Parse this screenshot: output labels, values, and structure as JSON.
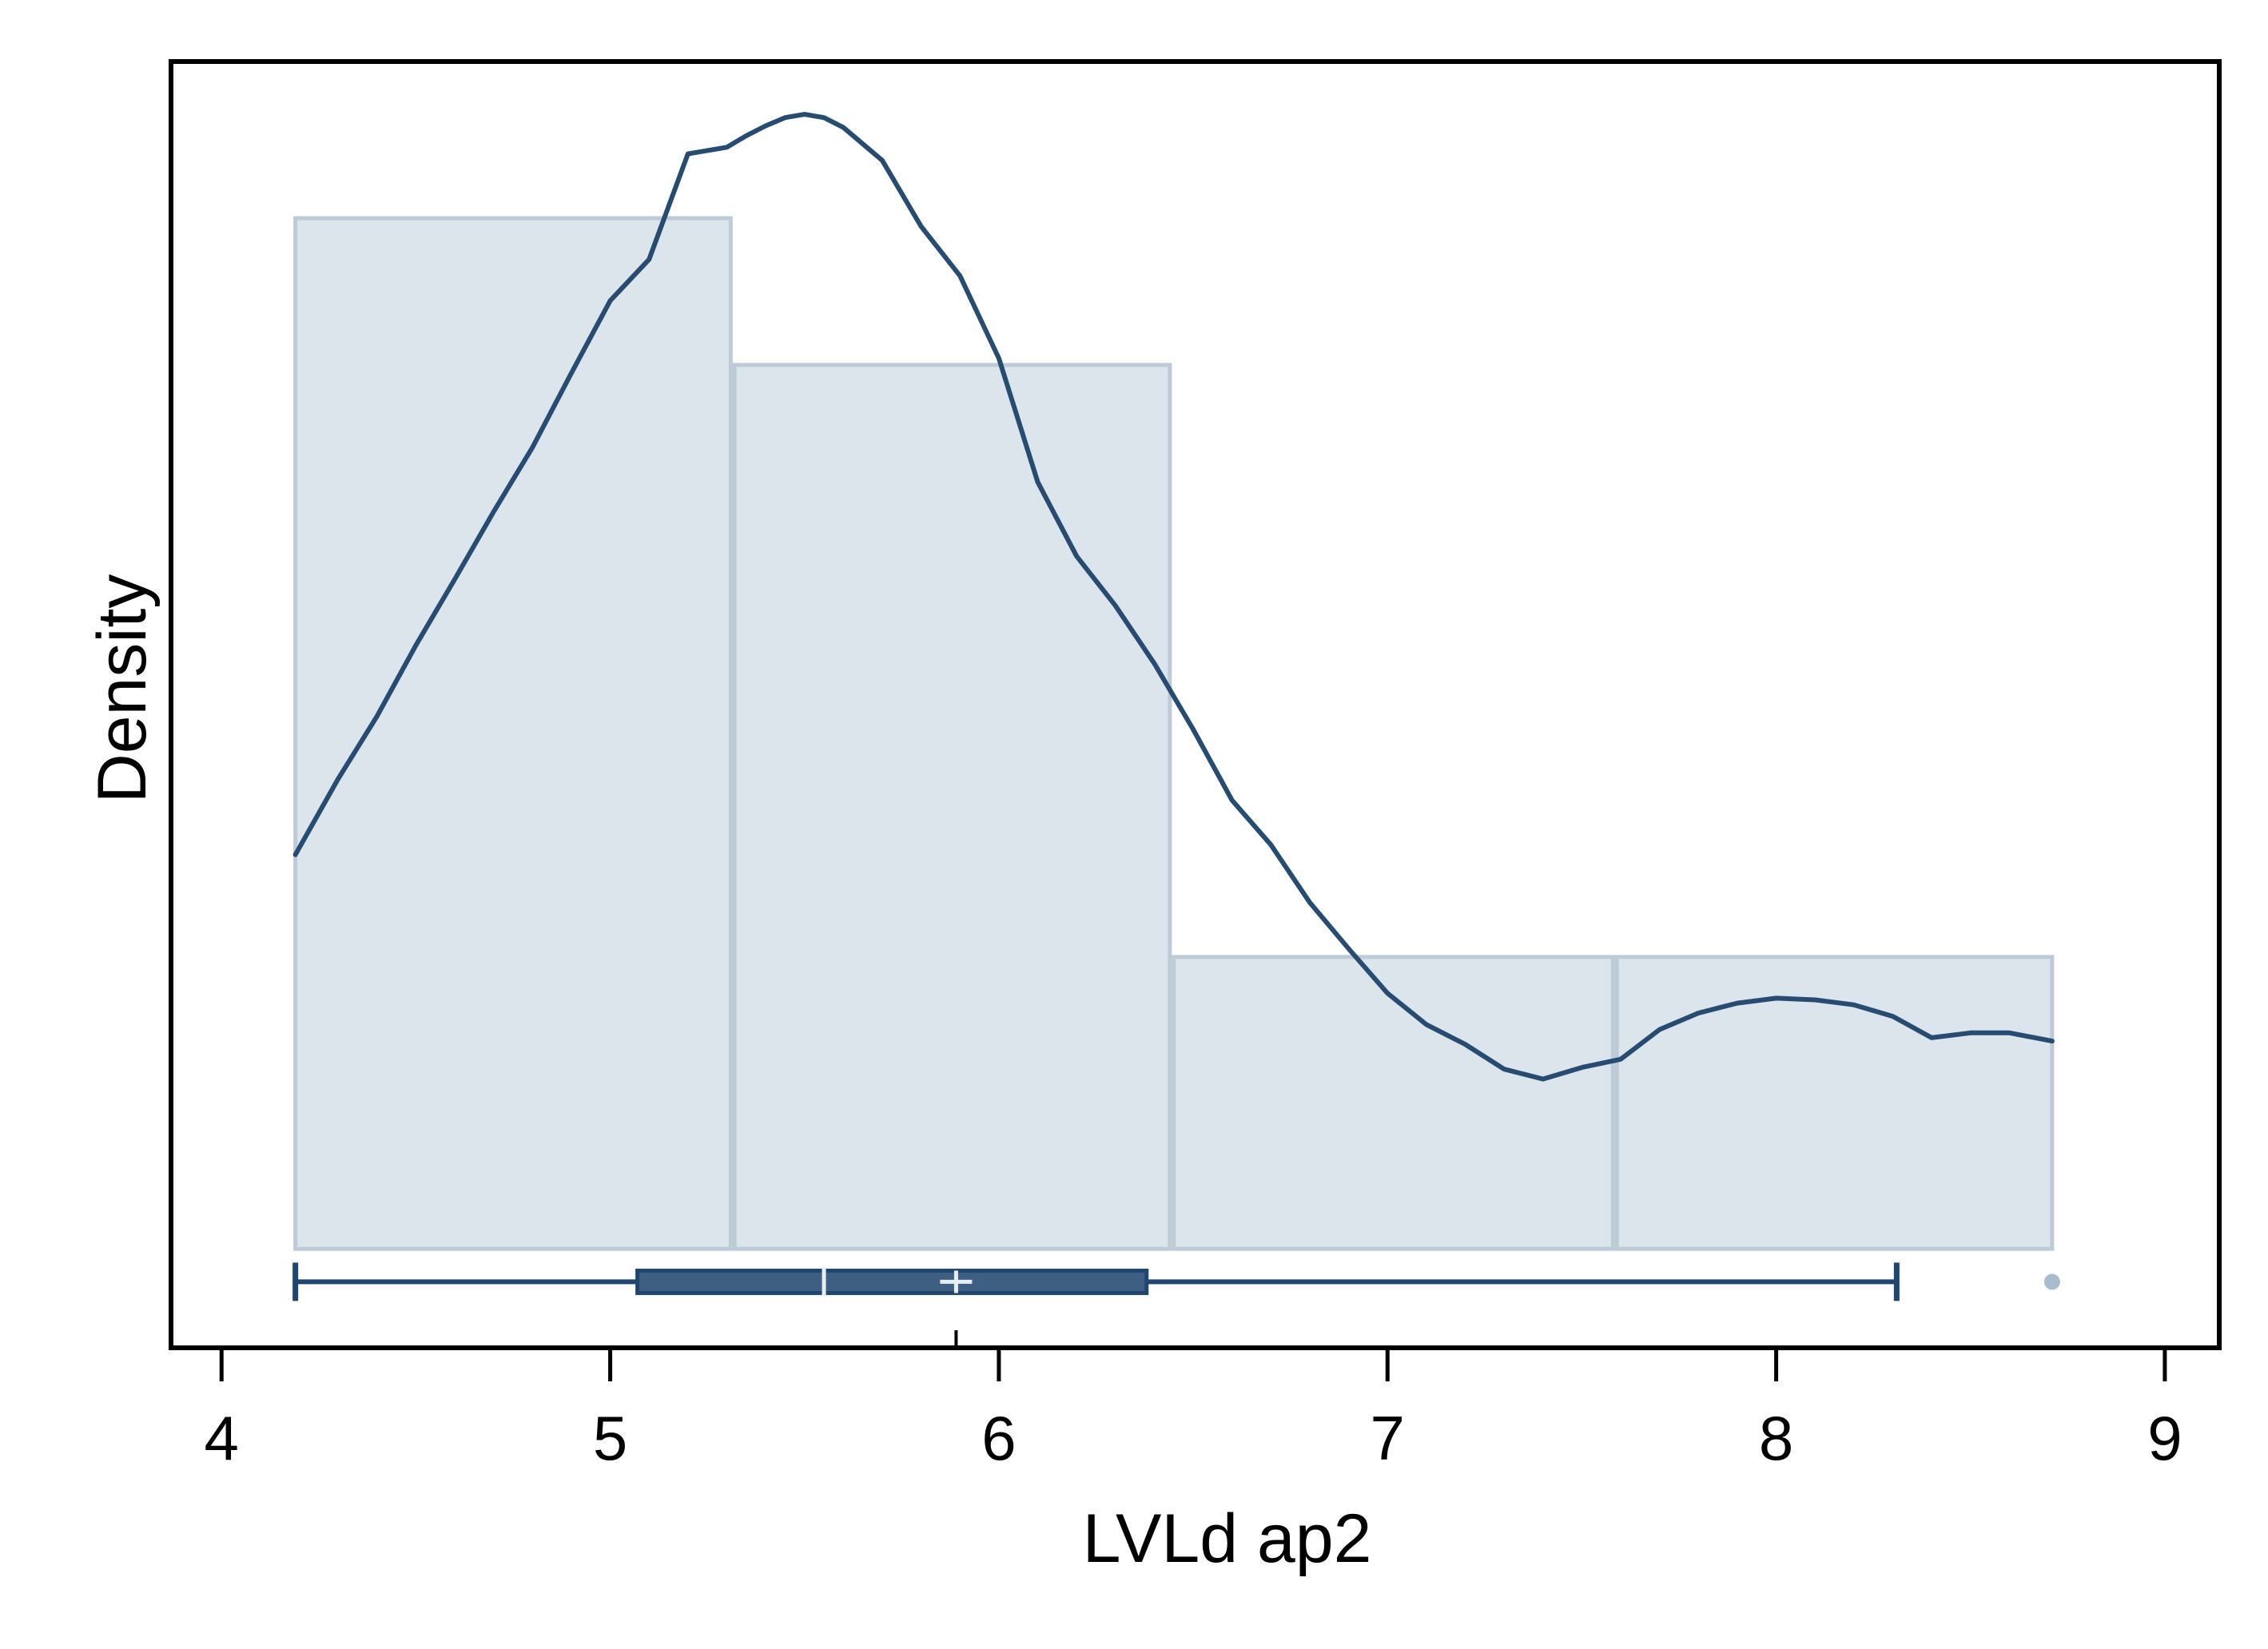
{
  "chart_data": {
    "type": "histogram",
    "xlabel": "LVLd ap2",
    "ylabel": "Density",
    "xlim": [
      3.87,
      9.14
    ],
    "ylim": [
      -0.06,
      0.72
    ],
    "x_ticks": [
      "4",
      "5",
      "6",
      "7",
      "8",
      "9"
    ],
    "x_tick_values": [
      4,
      5,
      6,
      7,
      8,
      9
    ],
    "y_ticks_shown": false,
    "grid": false,
    "legend": "none",
    "histogram": {
      "bins": [
        {
          "x0": 4.19,
          "x1": 5.31,
          "density": 0.625
        },
        {
          "x0": 5.32,
          "x1": 6.44,
          "density": 0.536
        },
        {
          "x0": 6.45,
          "x1": 7.58,
          "density": 0.177
        },
        {
          "x0": 7.59,
          "x1": 8.71,
          "density": 0.177
        }
      ]
    },
    "kde": {
      "x": [
        4.19,
        4.3,
        4.4,
        4.5,
        4.6,
        4.7,
        4.8,
        4.9,
        5.0,
        5.1,
        5.2,
        5.3,
        5.35,
        5.4,
        5.45,
        5.5,
        5.55,
        5.6,
        5.7,
        5.8,
        5.9,
        6.0,
        6.1,
        6.2,
        6.3,
        6.4,
        6.5,
        6.6,
        6.7,
        6.8,
        6.9,
        7.0,
        7.1,
        7.2,
        7.3,
        7.4,
        7.5,
        7.6,
        7.7,
        7.8,
        7.9,
        8.0,
        8.1,
        8.2,
        8.3,
        8.4,
        8.5,
        8.6,
        8.71
      ],
      "y": [
        0.239,
        0.285,
        0.323,
        0.366,
        0.406,
        0.447,
        0.486,
        0.531,
        0.575,
        0.6,
        0.664,
        0.668,
        0.675,
        0.681,
        0.686,
        0.688,
        0.686,
        0.68,
        0.66,
        0.62,
        0.59,
        0.54,
        0.465,
        0.42,
        0.39,
        0.355,
        0.315,
        0.272,
        0.245,
        0.21,
        0.182,
        0.155,
        0.136,
        0.124,
        0.109,
        0.103,
        0.11,
        0.115,
        0.133,
        0.143,
        0.149,
        0.152,
        0.151,
        0.148,
        0.141,
        0.128,
        0.131,
        0.131,
        0.126
      ]
    },
    "boxplot": {
      "min": 4.19,
      "q1": 5.07,
      "median": 5.55,
      "mean": 5.89,
      "q3": 6.38,
      "whisker_high": 8.31,
      "outliers": [
        8.71
      ]
    },
    "colors": {
      "hist_fill": "#dde5ec",
      "hist_edge": "#bccbd7",
      "kde_line": "#274c72",
      "box_fill": "#3f5f82",
      "box_edge": "#1e4670",
      "outlier": "#a7bccd",
      "frame": "#000000"
    }
  }
}
